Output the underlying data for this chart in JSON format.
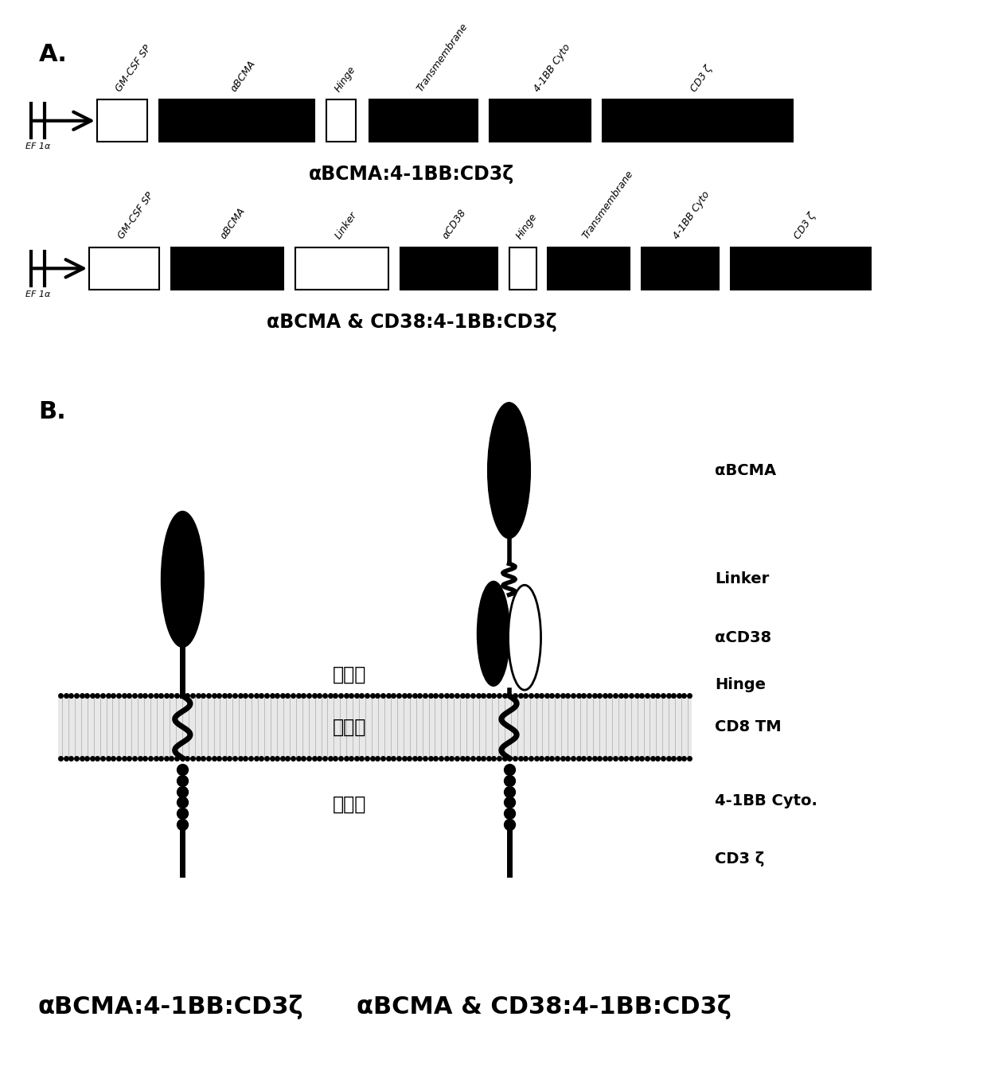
{
  "panel_A_label": "A.",
  "panel_B_label": "B.",
  "construct1_label": "αBCMA:4-1BB:CD3ζ",
  "construct2_label": "αBCMA & CD38:4-1BB:CD3ζ",
  "bottom_label1": "αBCMA:4-1BB:CD3ζ",
  "bottom_label2": "αBCMA & CD38:4-1BB:CD3ζ",
  "membrane_label_outside": "细胞外",
  "membrane_label_membrane": "细胞膜",
  "membrane_label_inside": "细胞内",
  "B_labels_right": [
    "αBCMA",
    "Linker",
    "αCD38",
    "Hinge",
    "CD8 TM",
    "4-1BB Cyto.",
    "CD3 ζ"
  ],
  "bg_color": "white"
}
